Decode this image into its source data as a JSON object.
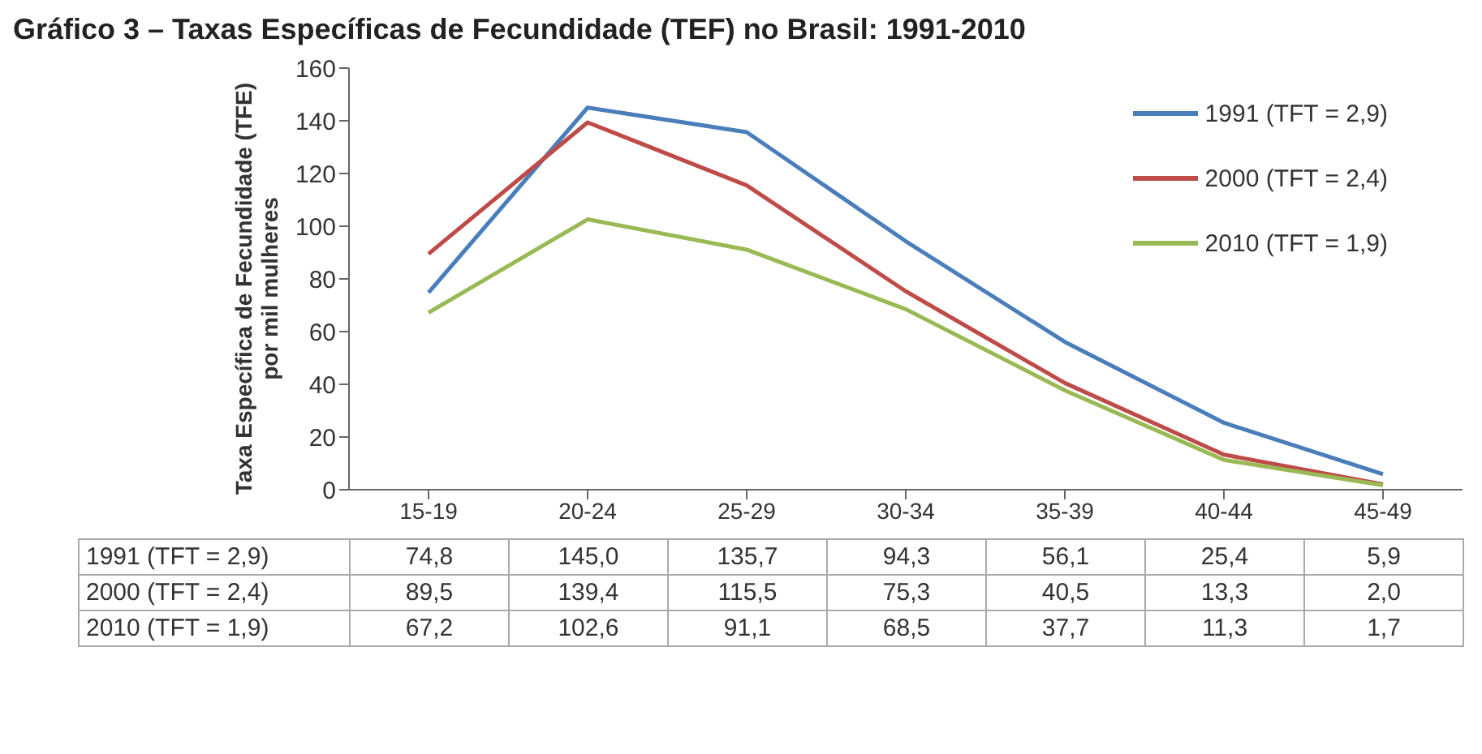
{
  "chart_data": {
    "type": "line",
    "title": "Gráfico 3 – Taxas Específicas de Fecundidade (TEF) no Brasil: 1991-2010",
    "ylabel": "Taxa Específica de Fecundidade (TFE) por mil mulheres",
    "categories": [
      "15-19",
      "20-24",
      "25-29",
      "30-34",
      "35-39",
      "40-44",
      "45-49"
    ],
    "series": [
      {
        "name": "1991 (TFT = 2,9)",
        "color": "#4a7ebb",
        "values": [
          74.8,
          145.0,
          135.7,
          94.3,
          56.1,
          25.4,
          5.9
        ],
        "value_labels": [
          "74,8",
          "145,0",
          "135,7",
          "94,3",
          "56,1",
          "25,4",
          "5,9"
        ]
      },
      {
        "name": "2000 (TFT = 2,4)",
        "color": "#be4b48",
        "values": [
          89.5,
          139.4,
          115.5,
          75.3,
          40.5,
          13.3,
          2.0
        ],
        "value_labels": [
          "89,5",
          "139,4",
          "115,5",
          "75,3",
          "40,5",
          "13,3",
          "2,0"
        ]
      },
      {
        "name": "2010 (TFT = 1,9)",
        "color": "#98b954",
        "values": [
          67.2,
          102.6,
          91.1,
          68.5,
          37.7,
          11.3,
          1.7
        ],
        "value_labels": [
          "67,2",
          "102,6",
          "91,1",
          "68,5",
          "37,7",
          "11,3",
          "1,7"
        ]
      }
    ],
    "ylim": [
      0,
      160
    ],
    "yticks": [
      0,
      20,
      40,
      60,
      80,
      100,
      120,
      140,
      160
    ],
    "grid": false,
    "legend": "top right",
    "marker": "none",
    "line_style": "solid"
  }
}
